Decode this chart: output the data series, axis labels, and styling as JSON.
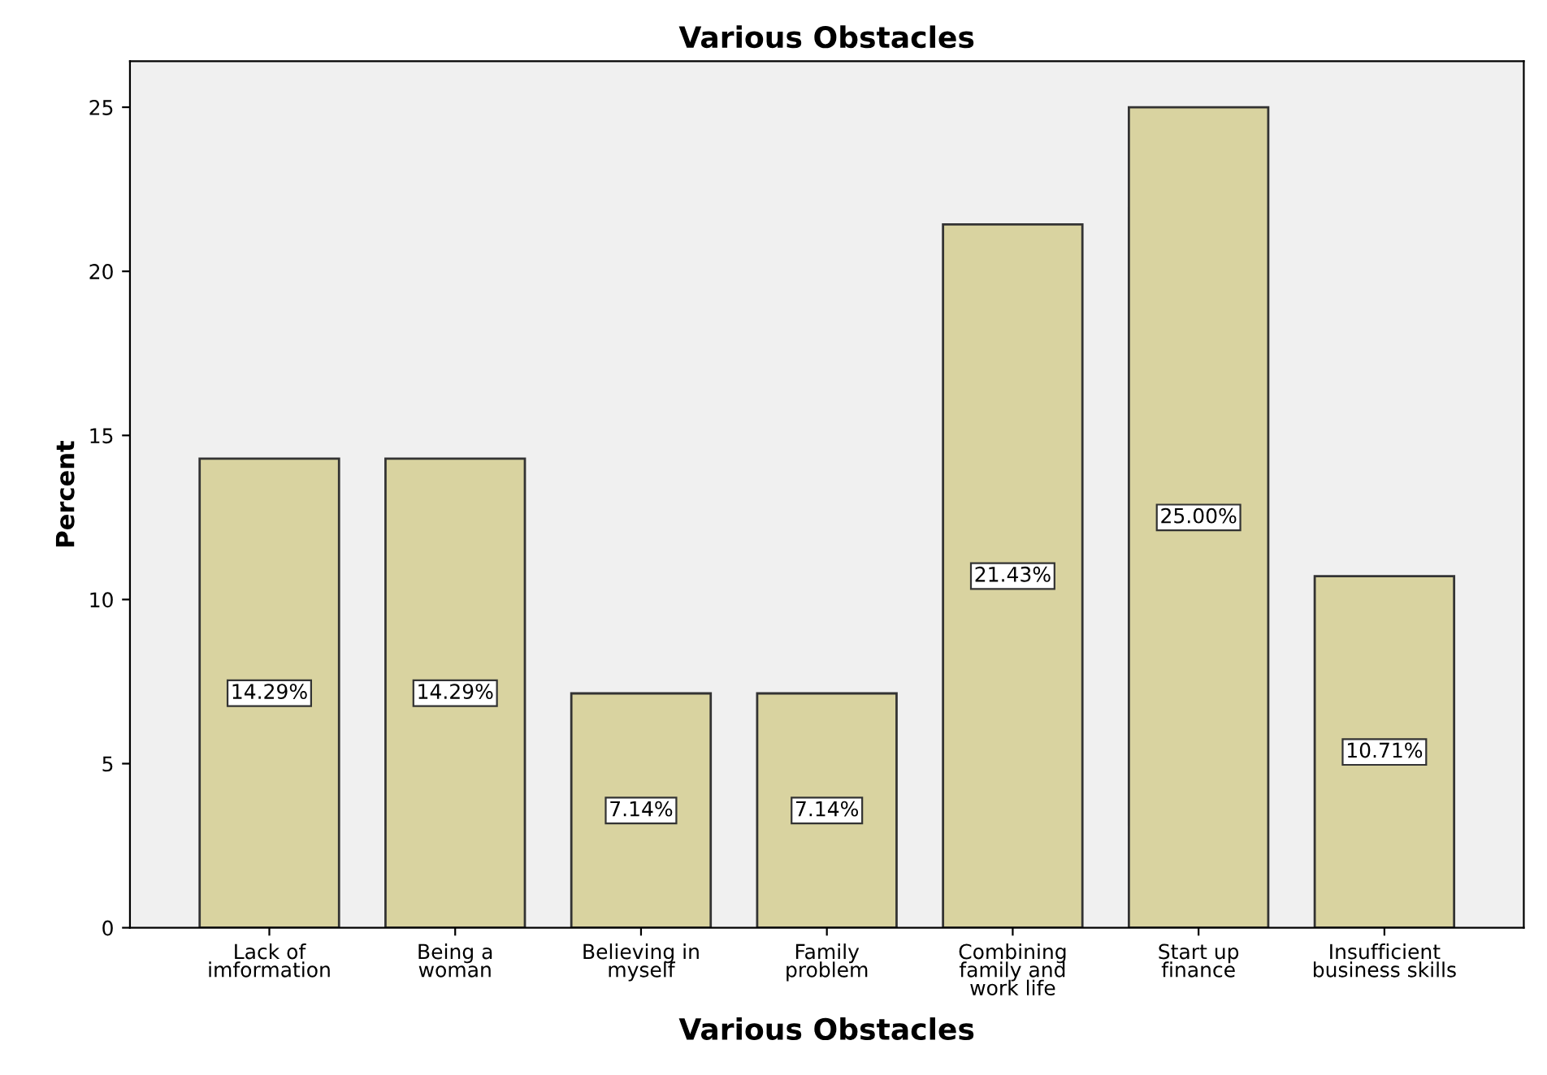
{
  "chart_data": {
    "type": "bar",
    "title": "Various Obstacles",
    "xlabel": "Various Obstacles",
    "ylabel": "Percent",
    "categories": [
      "Lack of\nimformation",
      "Being a\nwoman",
      "Believing in\nmyself",
      "Family\nproblem",
      "Combining\nfamily and\nwork life",
      "Start up\nfinance",
      "Insufficient\nbusiness skills"
    ],
    "values": [
      14.29,
      14.29,
      7.14,
      7.14,
      21.43,
      25.0,
      10.71
    ],
    "value_labels": [
      "14.29%",
      "14.29%",
      "7.14%",
      "7.14%",
      "21.43%",
      "25.00%",
      "10.71%"
    ],
    "color": "#d9d3a0",
    "ylim": [
      0,
      26.4
    ],
    "yticks": [
      0,
      5,
      10,
      15,
      20,
      25
    ],
    "grid": false,
    "legend": false
  }
}
